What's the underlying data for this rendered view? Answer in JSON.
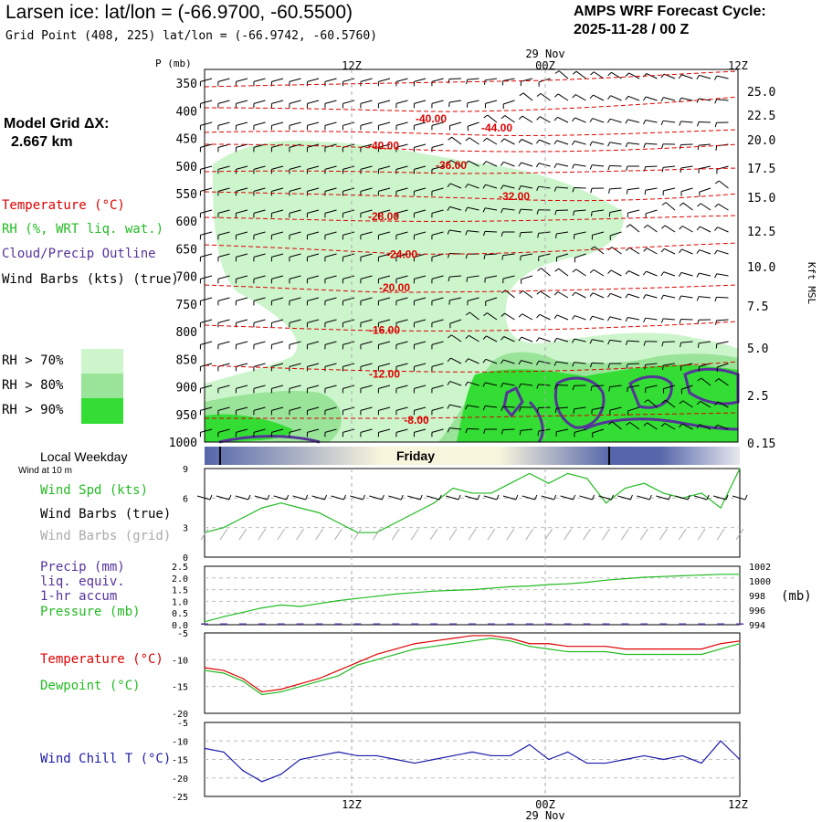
{
  "header": {
    "title": "Larsen ice:  lat/lon = (-66.9700, -60.5500)",
    "grid_point": "Grid Point (408, 225) lat/lon = (-66.9742, -60.5760)",
    "cycle_line1": "AMPS WRF Forecast Cycle:",
    "cycle_line2": "2025-11-28 / 00  Z",
    "model_grid_line1": "Model Grid ΔX:",
    "model_grid_line2": "2.667 km"
  },
  "colors": {
    "temperature": "#dd0000",
    "rh": "#22bb22",
    "cloud": "#553399",
    "wind": "#000000",
    "wind_grid": "#aaaaaa",
    "precip": "#553399",
    "pressure": "#22bb22",
    "dewpoint": "#22bb22",
    "windchill": "#1a1aaa",
    "rh70": "#ccf5cc",
    "rh80": "#99e499",
    "rh90": "#33dd33",
    "day_stripe_dark": "#5566aa",
    "day_stripe_light": "#f8f5dd"
  },
  "legend": {
    "temperature": "Temperature (°C)",
    "rh": "RH (%, WRT liq. wat.)",
    "cloud": "Cloud/Precip Outline",
    "wind": "Wind Barbs (kts) (true)",
    "rh70": "RH > 70%",
    "rh80": "RH > 80%",
    "rh90": "RH > 90%"
  },
  "time_axis": {
    "top_date": "29 Nov",
    "bottom_date": "29 Nov",
    "ticks": [
      "12Z",
      "00Z",
      "12Z"
    ]
  },
  "chart_data": [
    {
      "name": "sounding-cross-section",
      "type": "heatmap",
      "title": "Larsen ice:  lat/lon = (-66.9700, -60.5500)",
      "ylabel": "P (mb)",
      "ylabel_right": "Kft MSL",
      "pressure_levels": [
        350,
        400,
        450,
        500,
        550,
        600,
        650,
        700,
        750,
        800,
        850,
        900,
        950,
        1000
      ],
      "height_kft": [
        "25.0",
        "22.5",
        "20.0",
        "17.5",
        "15.0",
        "12.5",
        "10.0",
        "7.5",
        "5.0",
        "2.5",
        "0.15"
      ],
      "temperature_contours": [
        {
          "label": "-40.00",
          "p": 414
        },
        {
          "label": "-44.00",
          "p": 431
        },
        {
          "label": "-40.00",
          "p": 463
        },
        {
          "label": "-36.00",
          "p": 499
        },
        {
          "label": "-32.00",
          "p": 555
        },
        {
          "label": "-28.00",
          "p": 591
        },
        {
          "label": "-24.00",
          "p": 660
        },
        {
          "label": "-20.00",
          "p": 720
        },
        {
          "label": "-16.00",
          "p": 797
        },
        {
          "label": "-12.00",
          "p": 877
        },
        {
          "label": "-8.00",
          "p": 960
        }
      ]
    },
    {
      "name": "local-weekday",
      "type": "table",
      "label": "Local Weekday",
      "day": "Friday",
      "sublabel": "Wind at 10 m"
    },
    {
      "name": "wind-speed",
      "type": "line",
      "ylim": [
        0,
        9
      ],
      "yticks": [
        "9",
        "6",
        "3",
        "0"
      ],
      "labels": {
        "speed": "Wind Spd (kts)",
        "barbs_true": "Wind Barbs (true)",
        "barbs_grid": "Wind Barbs (grid)"
      },
      "x": [
        0,
        1,
        2,
        3,
        4,
        5,
        6,
        7,
        8,
        9,
        10,
        11,
        12,
        13,
        14,
        15,
        16,
        17,
        18,
        19,
        20,
        21,
        22,
        23,
        24,
        25,
        26,
        27,
        28
      ],
      "values": [
        2.5,
        3.0,
        4.0,
        5.0,
        5.5,
        5.0,
        4.5,
        3.5,
        2.5,
        2.5,
        3.5,
        4.5,
        5.5,
        7.0,
        6.5,
        6.5,
        7.5,
        8.5,
        7.5,
        8.5,
        8.0,
        5.5,
        7.0,
        7.5,
        6.5,
        6.0,
        6.5,
        5.0,
        9.0
      ]
    },
    {
      "name": "precip-pressure",
      "type": "line",
      "ylim_left": [
        0,
        2.5
      ],
      "yticks_left": [
        "2.5",
        "2.0",
        "1.5",
        "1.0",
        "0.5",
        "0.0"
      ],
      "ylim_right": [
        994,
        1002
      ],
      "yticks_right": [
        "1002",
        "1000",
        "998",
        "996",
        "994"
      ],
      "units_right": "(mb)",
      "labels": {
        "precip1": "Precip (mm)",
        "precip2": "liq. equiv.",
        "precip3": "1-hr accum",
        "pressure": "Pressure (mb)"
      },
      "x": [
        0,
        1,
        2,
        3,
        4,
        5,
        6,
        7,
        8,
        9,
        10,
        11,
        12,
        13,
        14,
        15,
        16,
        17,
        18,
        19,
        20,
        21,
        22,
        23,
        24,
        25,
        26,
        27,
        28
      ],
      "pressure": [
        994.4,
        995.1,
        995.7,
        996.3,
        996.7,
        996.5,
        996.9,
        997.3,
        997.6,
        997.9,
        998.2,
        998.4,
        998.6,
        998.7,
        998.8,
        999.0,
        999.2,
        999.3,
        999.5,
        999.6,
        999.8,
        1000.1,
        1000.3,
        1000.5,
        1000.6,
        1000.7,
        1000.8,
        1000.9,
        1000.9
      ],
      "precip": [
        0,
        0,
        0,
        0,
        0,
        0,
        0,
        0,
        0,
        0,
        0,
        0,
        0,
        0,
        0,
        0,
        0,
        0,
        0,
        0,
        0,
        0,
        0,
        0,
        0,
        0,
        0,
        0,
        0
      ]
    },
    {
      "name": "temp-dewpoint",
      "type": "line",
      "ylim": [
        -20,
        -5
      ],
      "yticks": [
        "-5",
        "-10",
        "-15",
        "-20"
      ],
      "labels": {
        "temperature": "Temperature (°C)",
        "dewpoint": "Dewpoint (°C)"
      },
      "x": [
        0,
        1,
        2,
        3,
        4,
        5,
        6,
        7,
        8,
        9,
        10,
        11,
        12,
        13,
        14,
        15,
        16,
        17,
        18,
        19,
        20,
        21,
        22,
        23,
        24,
        25,
        26,
        27,
        28
      ],
      "temperature": [
        -11.5,
        -12.0,
        -13.5,
        -16.0,
        -15.5,
        -14.5,
        -13.5,
        -12.0,
        -10.5,
        -9.0,
        -8.0,
        -7.0,
        -6.5,
        -6.0,
        -5.5,
        -5.5,
        -6.0,
        -7.0,
        -7.0,
        -7.5,
        -7.5,
        -7.5,
        -8.0,
        -8.0,
        -8.0,
        -8.0,
        -8.0,
        -7.0,
        -6.5
      ],
      "dewpoint": [
        -12.0,
        -12.5,
        -14.0,
        -16.5,
        -16.0,
        -15.0,
        -14.0,
        -13.0,
        -11.0,
        -10.0,
        -9.0,
        -8.0,
        -7.5,
        -7.0,
        -6.5,
        -6.0,
        -6.5,
        -7.5,
        -8.0,
        -8.5,
        -8.5,
        -8.5,
        -9.0,
        -9.0,
        -9.0,
        -9.0,
        -9.0,
        -8.0,
        -7.0
      ]
    },
    {
      "name": "wind-chill",
      "type": "line",
      "ylim": [
        -25,
        -5
      ],
      "yticks": [
        "-5",
        "-10",
        "-15",
        "-20",
        "-25"
      ],
      "labels": {
        "windchill": "Wind Chill T (°C)"
      },
      "x": [
        0,
        1,
        2,
        3,
        4,
        5,
        6,
        7,
        8,
        9,
        10,
        11,
        12,
        13,
        14,
        15,
        16,
        17,
        18,
        19,
        20,
        21,
        22,
        23,
        24,
        25,
        26,
        27,
        28
      ],
      "values": [
        -12,
        -13,
        -18,
        -21,
        -19,
        -15,
        -14,
        -13,
        -14,
        -14,
        -15,
        -16,
        -15,
        -14,
        -13,
        -14,
        -14,
        -11,
        -15,
        -13,
        -16,
        -16,
        -15,
        -14,
        -15,
        -14,
        -16,
        -10,
        -15
      ]
    }
  ]
}
